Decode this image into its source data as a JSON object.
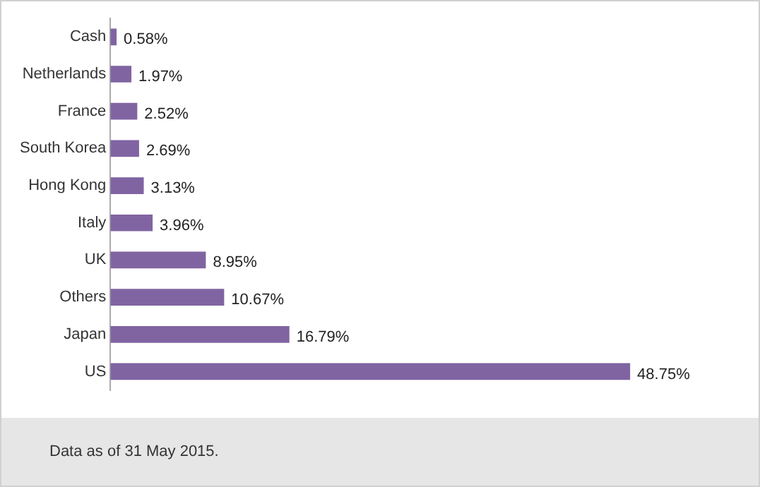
{
  "chart_data": {
    "type": "bar",
    "orientation": "horizontal",
    "categories": [
      "Cash",
      "Netherlands",
      "France",
      "South Korea",
      "Hong Kong",
      "Italy",
      "UK",
      "Others",
      "Japan",
      "US"
    ],
    "values": [
      0.58,
      1.97,
      2.52,
      2.69,
      3.13,
      3.96,
      8.95,
      10.67,
      16.79,
      48.75
    ],
    "value_labels": [
      "0.58%",
      "1.97%",
      "2.52%",
      "2.69%",
      "3.13%",
      "3.96%",
      "8.95%",
      "10.67%",
      "16.79%",
      "48.75%"
    ],
    "color": "#8064a2",
    "grid": false,
    "legend": false,
    "annotations": [
      "Data as of 31 May 2015."
    ]
  }
}
